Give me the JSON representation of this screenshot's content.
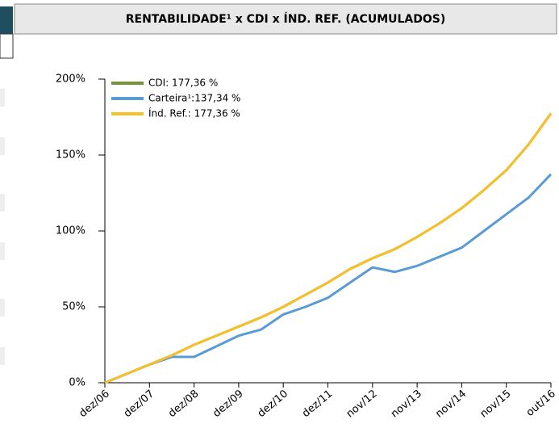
{
  "chart_data": {
    "type": "line",
    "title": "RENTABILIDADE¹ x CDI x ÍND. REF. (ACUMULADOS)",
    "categories": [
      "dez/06",
      null,
      "dez/07",
      null,
      "dez/08",
      null,
      "dez/09",
      null,
      "dez/10",
      null,
      "dez/11",
      null,
      "nov/12",
      null,
      "nov/13",
      null,
      "nov/14",
      null,
      "nov/15",
      null,
      "out/16"
    ],
    "series": [
      {
        "name": "CDI: 177,36 %",
        "color": "#77933c",
        "values": [
          0,
          6,
          12,
          18,
          25,
          31,
          37,
          43,
          50,
          58,
          66,
          75,
          82,
          88,
          96,
          105,
          115,
          127,
          140,
          157,
          177.36
        ]
      },
      {
        "name": "Carteira¹:137,34 %",
        "color": "#5b9bd5",
        "values": [
          0,
          6,
          12,
          17,
          17,
          24,
          31,
          35,
          45,
          50,
          56,
          66,
          76,
          73,
          77,
          83,
          89,
          100,
          111,
          122,
          137.34
        ]
      },
      {
        "name": "Índ. Ref.: 177,36 %",
        "color": "#f5c02a",
        "values": [
          0,
          6,
          12,
          18,
          25,
          31,
          37,
          43,
          50,
          58,
          66,
          75,
          82,
          88,
          96,
          105,
          115,
          127,
          140,
          157,
          177.36
        ]
      }
    ],
    "ylim": [
      0,
      200
    ],
    "yticks": [
      {
        "value": 0,
        "label": "0%"
      },
      {
        "value": 50,
        "label": "50%"
      },
      {
        "value": 100,
        "label": "100%"
      },
      {
        "value": 150,
        "label": "150%"
      },
      {
        "value": 200,
        "label": "200%"
      }
    ],
    "grid": false,
    "legend": "top-left"
  }
}
